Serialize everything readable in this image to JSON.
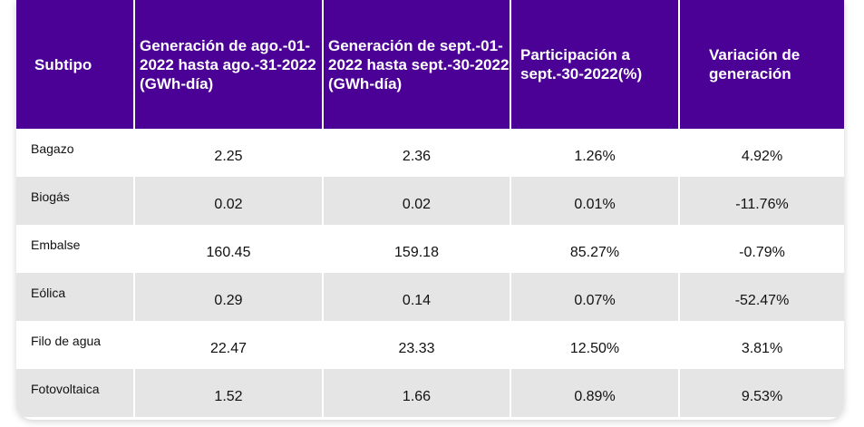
{
  "table": {
    "headers": [
      "Subtipo",
      "Generación de ago.-01-2022 hasta ago.-31-2022 (GWh-día)",
      "Generación de sept.-01-2022 hasta sept.-30-2022 (GWh-día)",
      "Participación a sept.-30-2022(%)",
      "Variación de generación"
    ],
    "rows": [
      [
        "Bagazo",
        "2.25",
        "2.36",
        "1.26%",
        "4.92%"
      ],
      [
        "Biogás",
        "0.02",
        "0.02",
        "0.01%",
        "-11.76%"
      ],
      [
        "Embalse",
        "160.45",
        "159.18",
        "85.27%",
        "-0.79%"
      ],
      [
        "Eólica",
        "0.29",
        "0.14",
        "0.07%",
        "-52.47%"
      ],
      [
        "Filo de agua",
        "22.47",
        "23.33",
        "12.50%",
        "3.81%"
      ],
      [
        "Fotovoltaica",
        "1.52",
        "1.66",
        "0.89%",
        "9.53%"
      ]
    ]
  },
  "colors": {
    "header_bg": "#4b0096",
    "header_text": "#ffffff",
    "row_alt_bg": "#e5e5e5"
  }
}
